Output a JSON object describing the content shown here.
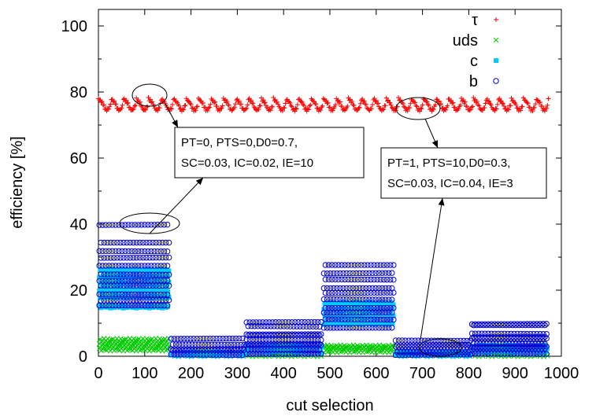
{
  "chart_data": {
    "type": "scatter",
    "title": "",
    "xlabel": "cut selection",
    "ylabel": "efficiency [%]",
    "xlim": [
      0,
      1000
    ],
    "ylim": [
      0,
      105
    ],
    "xticks": [
      "0",
      "100",
      "200",
      "300",
      "400",
      "500",
      "600",
      "700",
      "800",
      "900",
      "1000"
    ],
    "yticks": [
      "0",
      "20",
      "40",
      "60",
      "80",
      "100"
    ],
    "grid": false,
    "legend_position": "top-right",
    "series": [
      {
        "name": "τ",
        "marker": "plus",
        "color": "#ff0000",
        "description": "periodic saw-tooth around 75-78% over cuts 0-972",
        "blocks": [
          {
            "x_start": 0,
            "x_end": 972,
            "pattern": "sawtooth",
            "min": 74.5,
            "max": 78.0,
            "period": 27
          }
        ]
      },
      {
        "name": "uds",
        "marker": "cross",
        "color": "#00cc00",
        "blocks": [
          {
            "x_start": 0,
            "x_end": 155,
            "levels": [
              2.0,
              3.0,
              4.0,
              5.0
            ]
          },
          {
            "x_start": 155,
            "x_end": 485,
            "levels": [
              0.3
            ]
          },
          {
            "x_start": 485,
            "x_end": 640,
            "levels": [
              1.5,
              2.5,
              3.0
            ]
          },
          {
            "x_start": 640,
            "x_end": 972,
            "levels": [
              0.3
            ]
          }
        ]
      },
      {
        "name": "c",
        "marker": "square",
        "color": "#00ccff",
        "blocks": [
          {
            "x_start": 0,
            "x_end": 155,
            "levels": [
              15,
              18,
              20,
              22,
              24,
              26
            ]
          },
          {
            "x_start": 155,
            "x_end": 318,
            "levels": [
              0.5,
              1.0
            ]
          },
          {
            "x_start": 318,
            "x_end": 485,
            "levels": [
              1.5,
              2.5,
              3.0
            ]
          },
          {
            "x_start": 485,
            "x_end": 640,
            "levels": [
              10,
              12,
              14,
              16
            ]
          },
          {
            "x_start": 640,
            "x_end": 805,
            "levels": [
              0.5,
              1.0
            ]
          },
          {
            "x_start": 805,
            "x_end": 972,
            "levels": [
              1.5,
              2.5,
              3.0
            ]
          }
        ]
      },
      {
        "name": "b",
        "marker": "circle",
        "color": "#0000cc",
        "blocks": [
          {
            "x_start": 0,
            "x_end": 155,
            "levels": [
              15,
              17,
              19,
              21,
              23,
              25,
              27,
              30,
              32,
              34,
              40
            ]
          },
          {
            "x_start": 155,
            "x_end": 318,
            "levels": [
              0.5,
              1.5,
              2.5,
              3.5,
              5.0
            ]
          },
          {
            "x_start": 318,
            "x_end": 485,
            "levels": [
              1.0,
              2.0,
              3.0,
              4.0,
              5.0,
              6.0,
              7.0,
              9.0,
              10.0
            ]
          },
          {
            "x_start": 485,
            "x_end": 640,
            "levels": [
              9,
              11,
              13,
              15,
              17,
              19,
              21,
              23,
              25,
              28
            ]
          },
          {
            "x_start": 640,
            "x_end": 805,
            "levels": [
              0.5,
              1.5,
              2.5,
              3.5,
              5.0
            ]
          },
          {
            "x_start": 805,
            "x_end": 972,
            "levels": [
              1.0,
              2.0,
              3.0,
              4.0,
              5.0,
              6.0,
              7.0,
              9.0,
              10.0
            ]
          }
        ]
      }
    ],
    "annotations": [
      {
        "lines": [
          "PT=0, PTS=0,D0=0.7,",
          "SC=0.03, IC=0.02, IE=10"
        ],
        "targets": [
          {
            "x": 105,
            "y": 77.5
          },
          {
            "x": 105,
            "y": 40.5
          }
        ]
      },
      {
        "lines": [
          "PT=1, PTS=10,D0=0.3,",
          "SC=0.03, IC=0.04, IE=3"
        ],
        "targets": [
          {
            "x": 670,
            "y": 75.5
          },
          {
            "x": 670,
            "y": 2.5
          }
        ]
      }
    ]
  }
}
